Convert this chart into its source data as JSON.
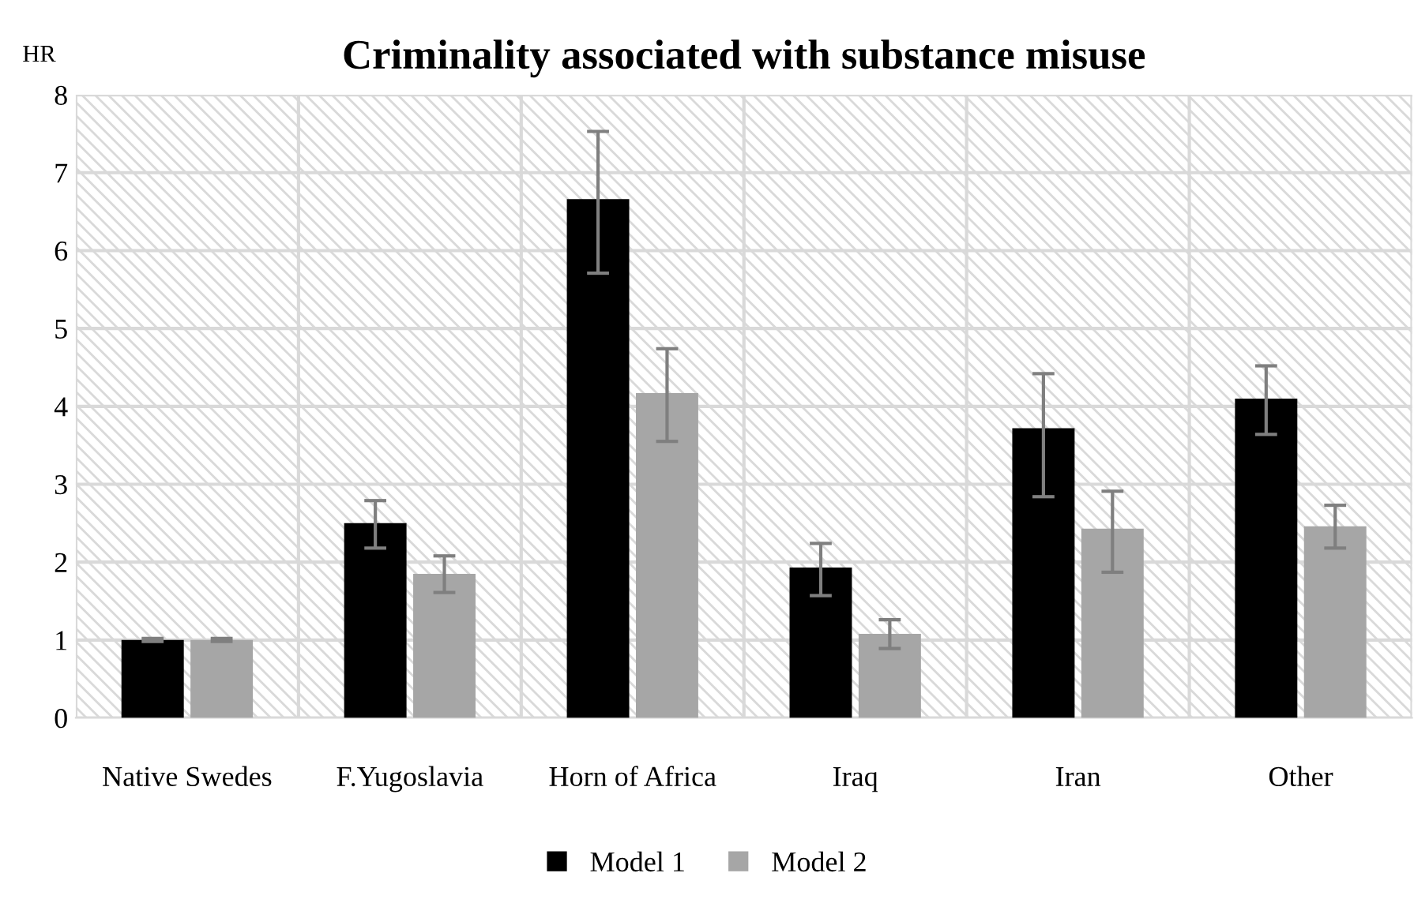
{
  "chart_data": {
    "type": "bar",
    "title": "Criminality associated with substance misuse",
    "ylabel": "HR",
    "categories": [
      "Native Swedes",
      "F.Yugoslavia",
      "Horn of Africa",
      "Iraq",
      "Iran",
      "Other"
    ],
    "series": [
      {
        "name": "Model 1",
        "color": "#000000",
        "values": [
          1.0,
          2.5,
          6.66,
          1.93,
          3.72,
          4.1
        ],
        "errors": [
          [
            0.98,
            1.02
          ],
          [
            2.18,
            2.79
          ],
          [
            5.71,
            7.53
          ],
          [
            1.57,
            2.24
          ],
          [
            2.84,
            4.42
          ],
          [
            3.64,
            4.52
          ]
        ]
      },
      {
        "name": "Model 2",
        "color": "#a6a6a6",
        "values": [
          1.0,
          1.85,
          4.17,
          1.08,
          2.43,
          2.46
        ],
        "errors": [
          [
            0.98,
            1.02
          ],
          [
            1.61,
            2.08
          ],
          [
            3.55,
            4.74
          ],
          [
            0.89,
            1.26
          ],
          [
            1.87,
            2.91
          ],
          [
            2.18,
            2.73
          ]
        ]
      }
    ],
    "ylim": [
      0,
      8
    ],
    "yticks": [
      0,
      1,
      2,
      3,
      4,
      5,
      6,
      7,
      8
    ],
    "grid": true,
    "legend": "bottom"
  }
}
